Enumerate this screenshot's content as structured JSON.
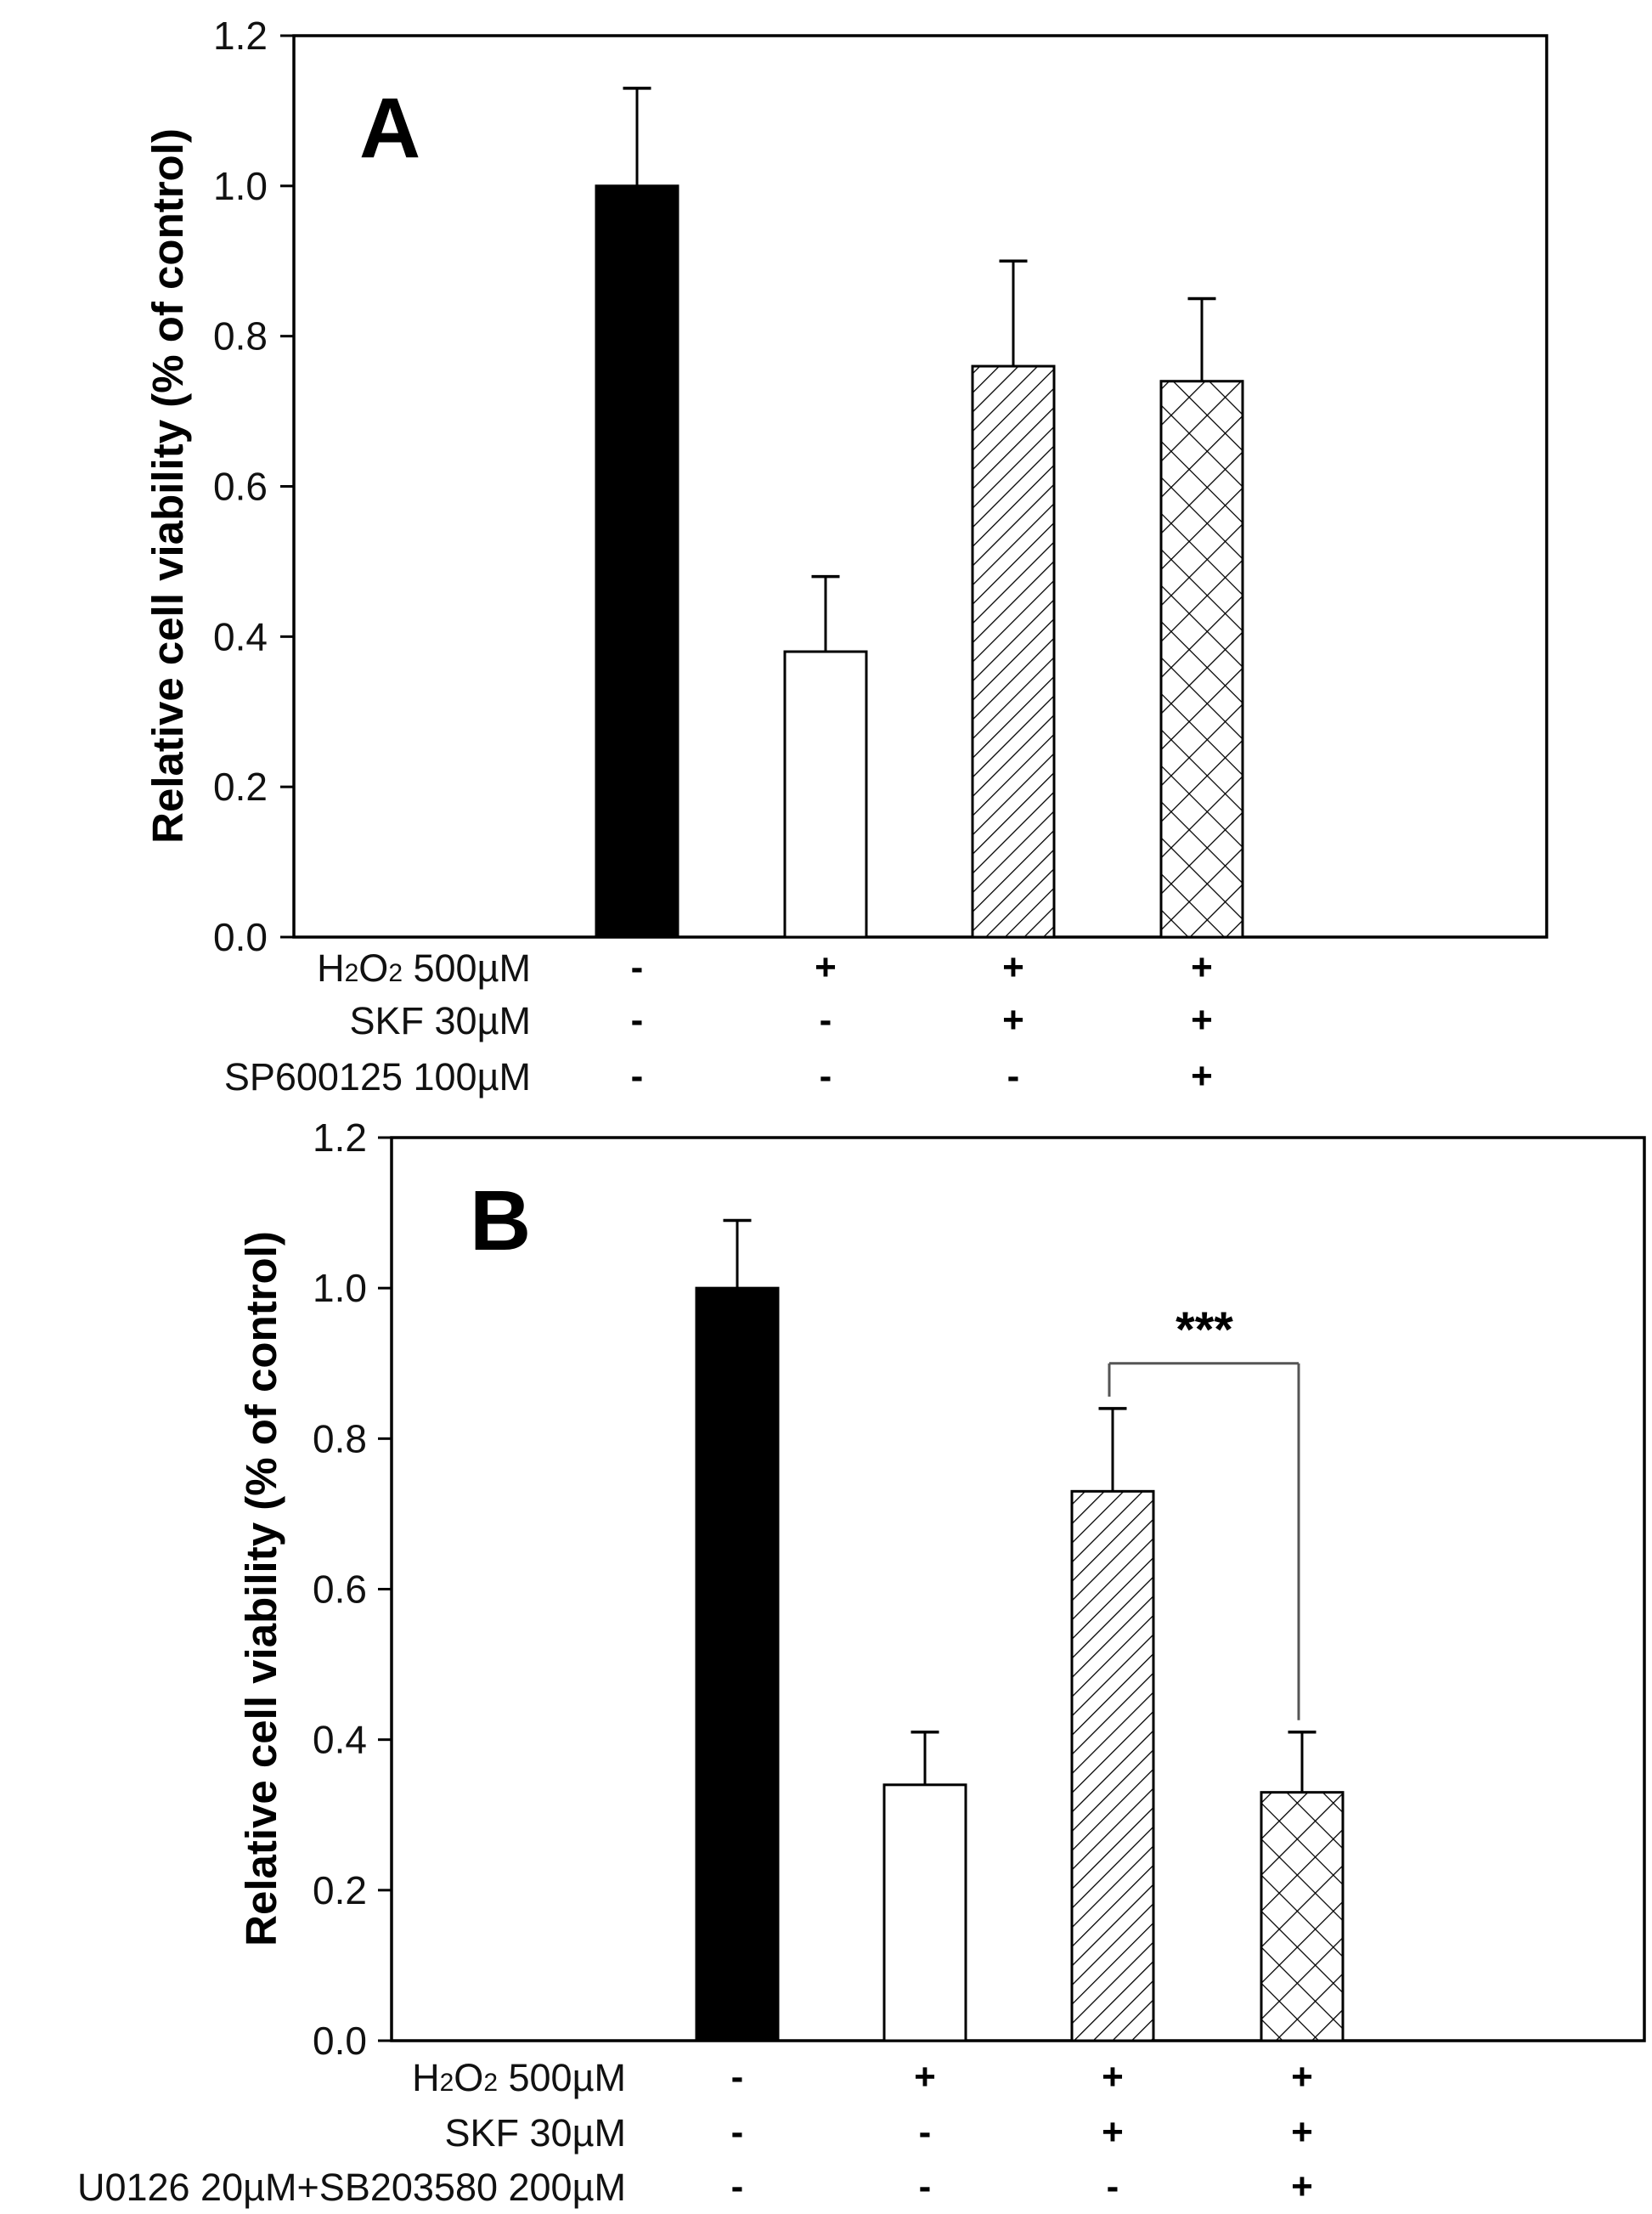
{
  "chart_data": [
    {
      "panel": "A",
      "type": "bar",
      "ylabel": "Relative cell viability (% of control)",
      "ylim": [
        0,
        1.2
      ],
      "yticks": [
        "0.0",
        "0.2",
        "0.4",
        "0.6",
        "0.8",
        "1.0",
        "1.2"
      ],
      "ytick_values": [
        0,
        0.2,
        0.4,
        0.6,
        0.8,
        1.0,
        1.2
      ],
      "grid": false,
      "categories": [
        "control",
        "H2O2",
        "H2O2+SKF",
        "H2O2+SKF+SP600125"
      ],
      "values": [
        1.0,
        0.38,
        0.76,
        0.74
      ],
      "error_upper": [
        1.13,
        0.48,
        0.9,
        0.85
      ],
      "fills": [
        "solid-black",
        "white",
        "diagonal-hatch",
        "cross-hatch"
      ],
      "treatment_rows": [
        {
          "label_main": "H",
          "label_sub1": "2",
          "label_mid": "O",
          "label_sub2": "2",
          "label_rest": " 500µM",
          "marks": [
            "-",
            "+",
            "+",
            "+"
          ]
        },
        {
          "label": "SKF 30µM",
          "marks": [
            "-",
            "-",
            "+",
            "+"
          ]
        },
        {
          "label": "SP600125 100µM",
          "marks": [
            "-",
            "-",
            "-",
            "+"
          ]
        }
      ],
      "annotations": []
    },
    {
      "panel": "B",
      "type": "bar",
      "ylabel": "Relative cell viability (% of control)",
      "ylim": [
        0,
        1.2
      ],
      "yticks": [
        "0.0",
        "0.2",
        "0.4",
        "0.6",
        "0.8",
        "1.0",
        "1.2"
      ],
      "ytick_values": [
        0,
        0.2,
        0.4,
        0.6,
        0.8,
        1.0,
        1.2
      ],
      "grid": false,
      "categories": [
        "control",
        "H2O2",
        "H2O2+SKF",
        "H2O2+SKF+U0126+SB203580"
      ],
      "values": [
        1.0,
        0.34,
        0.73,
        0.33
      ],
      "error_upper": [
        1.09,
        0.41,
        0.84,
        0.41
      ],
      "fills": [
        "solid-black",
        "white",
        "diagonal-hatch",
        "cross-hatch"
      ],
      "treatment_rows": [
        {
          "label_main": "H",
          "label_sub1": "2",
          "label_mid": "O",
          "label_sub2": "2",
          "label_rest": " 500µM",
          "marks": [
            "-",
            "+",
            "+",
            "+"
          ]
        },
        {
          "label": "SKF 30µM",
          "marks": [
            "-",
            "-",
            "+",
            "+"
          ]
        },
        {
          "label": "U0126 20µM+SB203580 200µM",
          "marks": [
            "-",
            "-",
            "-",
            "+"
          ]
        }
      ],
      "annotations": [
        {
          "text": "***",
          "between": [
            2,
            3
          ],
          "bracket_y": 0.9
        }
      ]
    }
  ],
  "colors": {
    "bar_solid": "#000000",
    "bar_outline": "#000000",
    "bracket": "#555555",
    "background": "#ffffff"
  }
}
